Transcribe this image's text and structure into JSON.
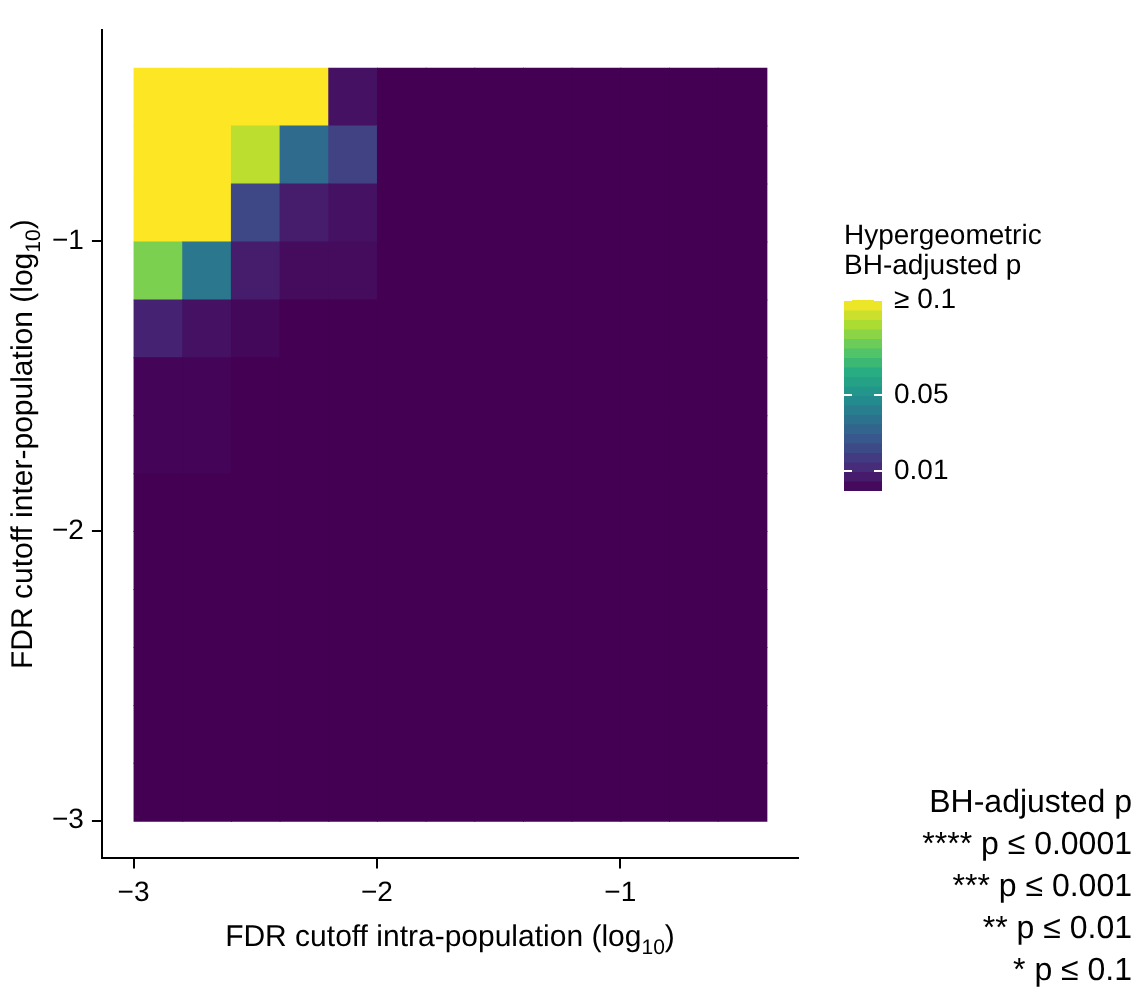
{
  "chart_data": {
    "type": "heatmap",
    "xlabel": "FDR cutoff intra-population (log$_{10}$)",
    "ylabel": "FDR cutoff inter-population (log$_{10}$)",
    "clabel": "Hypergeometric\nBH-adjusted p",
    "x": [
      -2.9,
      -2.7,
      -2.5,
      -2.3,
      -2.1,
      -1.9,
      -1.7,
      -1.5,
      -1.3,
      -1.1,
      -0.9,
      -0.7,
      -0.5
    ],
    "y": [
      -0.5,
      -0.7,
      -0.9,
      -1.1,
      -1.3,
      -1.5,
      -1.7,
      -1.9,
      -2.1,
      -2.3,
      -2.5,
      -2.7,
      -2.9
    ],
    "cells": [
      [
        0.1,
        0.1,
        0.1,
        0.1,
        0.005,
        0,
        0,
        0,
        0,
        0,
        0,
        0,
        0
      ],
      [
        0.1,
        0.1,
        0.09,
        0.035,
        0.02,
        0,
        0,
        0,
        0,
        0,
        0,
        0,
        0
      ],
      [
        0.1,
        0.1,
        0.022,
        0.008,
        0.005,
        0,
        0,
        0,
        0,
        0,
        0,
        0,
        0
      ],
      [
        0.08,
        0.04,
        0.008,
        0.003,
        0.003,
        0,
        0,
        0,
        0,
        0,
        0,
        0,
        0
      ],
      [
        0.01,
        0.005,
        0.002,
        0,
        0,
        0,
        0,
        0,
        0,
        0,
        0,
        0,
        0
      ],
      [
        0.001,
        0.001,
        0,
        0,
        0,
        0,
        0,
        0,
        0,
        0,
        0,
        0,
        0
      ],
      [
        0.001,
        0.001,
        0,
        0,
        0,
        0,
        0,
        0,
        0,
        0,
        0,
        0,
        0
      ],
      [
        0,
        0,
        0,
        0,
        0,
        0,
        0,
        0,
        0,
        0,
        0,
        0,
        0
      ],
      [
        0,
        0,
        0,
        0,
        0,
        0,
        0,
        0,
        0,
        0,
        0,
        0,
        0
      ],
      [
        0,
        0,
        0,
        0,
        0,
        0,
        0,
        0,
        0,
        0,
        0,
        0,
        0
      ],
      [
        0,
        0,
        0,
        0,
        0,
        0,
        0,
        0,
        0,
        0,
        0,
        0,
        0
      ],
      [
        0,
        0,
        0,
        0,
        0,
        0,
        0,
        0,
        0,
        0,
        0,
        0,
        0
      ],
      [
        0,
        0,
        0,
        0,
        0,
        0,
        0,
        0,
        0,
        0,
        0,
        0,
        0
      ]
    ],
    "xlim": [
      -3.13,
      -0.27
    ],
    "xticks": [
      {
        "value": -3,
        "label": "−3"
      },
      {
        "value": -2,
        "label": "−2"
      },
      {
        "value": -1,
        "label": "−1"
      }
    ],
    "ylim": [
      -3.13,
      -0.27
    ],
    "yticks": [
      {
        "value": -3,
        "label": "−3"
      },
      {
        "value": -2,
        "label": "−2"
      },
      {
        "value": -1,
        "label": "−1"
      }
    ],
    "clim": [
      0,
      0.1
    ],
    "cticks": [
      {
        "value": 0.1,
        "label": "≥ 0.1"
      },
      0.05,
      0.01
    ],
    "annotations": [
      "BH-adjusted p",
      "**** p ≤ 0.0001",
      "*** p ≤ 0.001",
      "** p ≤ 0.01",
      "* p ≤ 0.1"
    ]
  }
}
